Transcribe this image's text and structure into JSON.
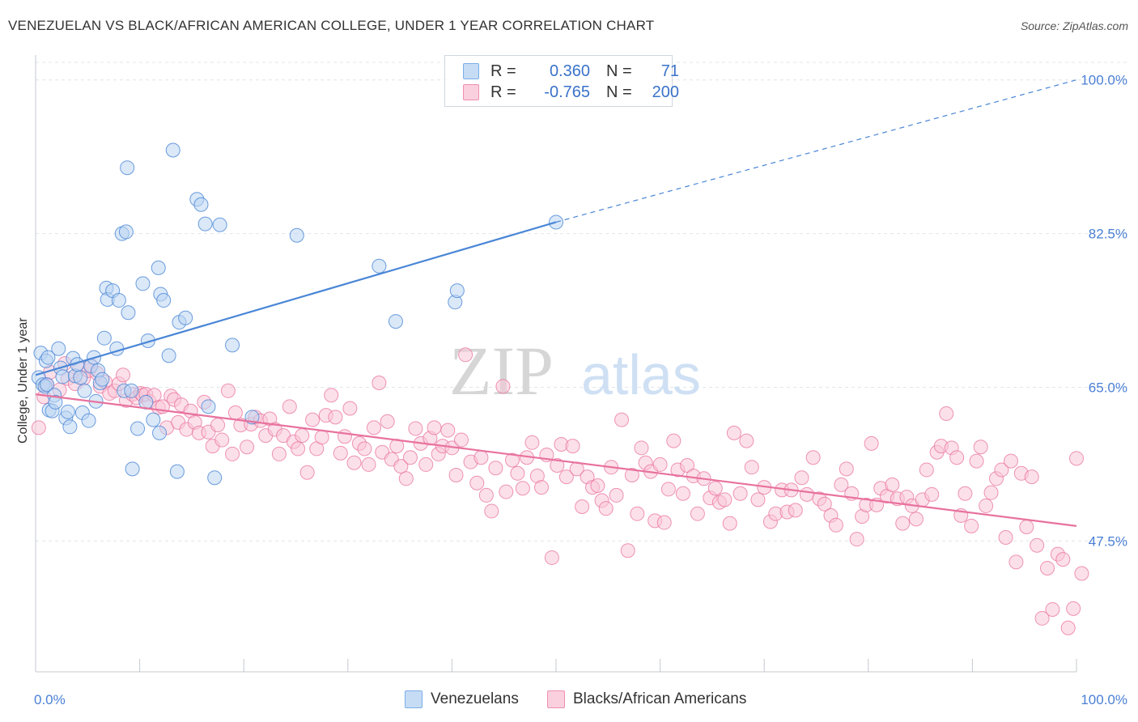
{
  "title": "VENEZUELAN VS BLACK/AFRICAN AMERICAN COLLEGE, UNDER 1 YEAR CORRELATION CHART",
  "source": "Source: ZipAtlas.com",
  "watermark": {
    "zip": "ZIP",
    "atlas": "atlas"
  },
  "stats": [
    {
      "r_label": "R =",
      "r_value": "0.360",
      "n_label": "N =",
      "n_value": "71",
      "color": "#7aaee8",
      "fill": "#c6dcf5"
    },
    {
      "r_label": "R =",
      "r_value": "-0.765",
      "n_label": "N =",
      "n_value": "200",
      "color": "#ef8fb1",
      "fill": "#fbd0de"
    }
  ],
  "legend": {
    "series1": "Venezuelans",
    "series2": "Blacks/African Americans"
  },
  "chart_data": {
    "type": "scatter",
    "title": "VENEZUELAN VS BLACK/AFRICAN AMERICAN COLLEGE, UNDER 1 YEAR CORRELATION CHART",
    "xlabel": "",
    "ylabel": "College, Under 1 year",
    "xlim": [
      0,
      100
    ],
    "ylim": [
      32.6,
      102
    ],
    "x_tick_labels": [
      "0.0%",
      "100.0%"
    ],
    "y_ticks": [
      47.5,
      65.0,
      82.5,
      100.0
    ],
    "y_tick_labels": [
      "47.5%",
      "65.0%",
      "82.5%",
      "100.0%"
    ],
    "grid": true,
    "legend_position": "bottom",
    "series": [
      {
        "name": "Venezuelans",
        "color": "#4a86d6",
        "fill": "#bcd5f3",
        "trend": {
          "x": [
            0,
            50
          ],
          "y": [
            66.4,
            83.8
          ],
          "extended_to": [
            100,
            100.0
          ]
        },
        "points": [
          [
            0.3,
            66.1
          ],
          [
            0.5,
            68.9
          ],
          [
            0.7,
            65.3
          ],
          [
            0.9,
            65.1
          ],
          [
            1.0,
            68.0
          ],
          [
            1.1,
            65.3
          ],
          [
            1.2,
            68.4
          ],
          [
            1.3,
            62.4
          ],
          [
            1.6,
            62.3
          ],
          [
            1.8,
            64.1
          ],
          [
            1.9,
            63.3
          ],
          [
            2.2,
            69.4
          ],
          [
            2.4,
            67.2
          ],
          [
            2.6,
            66.2
          ],
          [
            2.9,
            61.5
          ],
          [
            3.1,
            62.2
          ],
          [
            3.3,
            60.5
          ],
          [
            3.6,
            68.3
          ],
          [
            3.8,
            66.3
          ],
          [
            4.0,
            67.6
          ],
          [
            4.3,
            66.1
          ],
          [
            4.5,
            62.1
          ],
          [
            4.7,
            64.6
          ],
          [
            5.1,
            61.2
          ],
          [
            5.3,
            67.4
          ],
          [
            5.6,
            68.4
          ],
          [
            5.8,
            63.4
          ],
          [
            6.0,
            66.9
          ],
          [
            6.2,
            65.5
          ],
          [
            6.4,
            65.9
          ],
          [
            6.6,
            70.6
          ],
          [
            6.8,
            76.3
          ],
          [
            6.9,
            75.0
          ],
          [
            7.4,
            76.0
          ],
          [
            7.8,
            69.4
          ],
          [
            8.0,
            74.9
          ],
          [
            8.3,
            82.5
          ],
          [
            8.5,
            64.6
          ],
          [
            8.7,
            82.7
          ],
          [
            8.8,
            90.0
          ],
          [
            8.9,
            73.5
          ],
          [
            9.2,
            64.6
          ],
          [
            9.3,
            55.7
          ],
          [
            9.8,
            60.3
          ],
          [
            10.3,
            76.8
          ],
          [
            10.6,
            63.3
          ],
          [
            10.8,
            70.3
          ],
          [
            11.3,
            61.3
          ],
          [
            11.8,
            78.6
          ],
          [
            11.9,
            59.8
          ],
          [
            12.0,
            75.6
          ],
          [
            12.3,
            74.9
          ],
          [
            12.8,
            68.6
          ],
          [
            13.2,
            92.0
          ],
          [
            13.6,
            55.4
          ],
          [
            13.8,
            72.4
          ],
          [
            14.4,
            72.9
          ],
          [
            15.5,
            86.4
          ],
          [
            15.9,
            85.8
          ],
          [
            16.3,
            83.6
          ],
          [
            16.6,
            62.8
          ],
          [
            17.2,
            54.7
          ],
          [
            17.7,
            83.5
          ],
          [
            18.9,
            69.8
          ],
          [
            20.8,
            61.6
          ],
          [
            25.1,
            82.3
          ],
          [
            33.0,
            78.8
          ],
          [
            34.6,
            72.5
          ],
          [
            40.3,
            74.7
          ],
          [
            40.5,
            76.0
          ],
          [
            50.0,
            83.8
          ]
        ]
      },
      {
        "name": "Blacks/African Americans",
        "color": "#e8729d",
        "fill": "#f9c6d7",
        "trend": {
          "x": [
            0,
            100
          ],
          "y": [
            64.2,
            49.2
          ]
        },
        "points": [
          [
            0.3,
            60.4
          ],
          [
            0.8,
            63.9
          ],
          [
            1.0,
            65.3
          ],
          [
            1.4,
            66.7
          ],
          [
            2.3,
            64.7
          ],
          [
            2.8,
            67.7
          ],
          [
            3.1,
            66.0
          ],
          [
            3.8,
            65.4
          ],
          [
            4.2,
            67.1
          ],
          [
            4.6,
            66.0
          ],
          [
            5.1,
            66.9
          ],
          [
            5.3,
            67.5
          ],
          [
            5.9,
            66.6
          ],
          [
            6.2,
            65.1
          ],
          [
            6.7,
            65.6
          ],
          [
            7.1,
            64.3
          ],
          [
            7.6,
            64.6
          ],
          [
            8.0,
            65.4
          ],
          [
            8.4,
            66.4
          ],
          [
            8.7,
            63.5
          ],
          [
            9.3,
            64.2
          ],
          [
            9.7,
            63.8
          ],
          [
            10.1,
            64.3
          ],
          [
            10.3,
            64.1
          ],
          [
            10.6,
            64.2
          ],
          [
            10.9,
            63.4
          ],
          [
            11.4,
            64.1
          ],
          [
            11.8,
            62.7
          ],
          [
            12.2,
            62.8
          ],
          [
            12.6,
            60.4
          ],
          [
            13.0,
            64.0
          ],
          [
            13.3,
            63.6
          ],
          [
            13.7,
            61.0
          ],
          [
            14.0,
            63.0
          ],
          [
            14.5,
            60.2
          ],
          [
            14.9,
            62.3
          ],
          [
            15.3,
            61.0
          ],
          [
            15.7,
            59.8
          ],
          [
            16.2,
            63.3
          ],
          [
            16.6,
            59.9
          ],
          [
            17.0,
            58.3
          ],
          [
            17.5,
            60.7
          ],
          [
            17.9,
            59.0
          ],
          [
            18.5,
            64.6
          ],
          [
            18.9,
            57.4
          ],
          [
            19.2,
            62.1
          ],
          [
            19.7,
            60.7
          ],
          [
            20.3,
            58.2
          ],
          [
            20.7,
            60.8
          ],
          [
            21.1,
            61.6
          ],
          [
            21.6,
            61.2
          ],
          [
            22.1,
            59.5
          ],
          [
            22.5,
            61.4
          ],
          [
            23.0,
            60.2
          ],
          [
            23.4,
            57.4
          ],
          [
            23.8,
            59.5
          ],
          [
            24.4,
            62.8
          ],
          [
            24.8,
            58.8
          ],
          [
            25.2,
            58.0
          ],
          [
            25.6,
            59.5
          ],
          [
            26.1,
            55.3
          ],
          [
            26.6,
            61.3
          ],
          [
            27.0,
            58.0
          ],
          [
            27.5,
            59.3
          ],
          [
            27.9,
            61.8
          ],
          [
            28.4,
            64.1
          ],
          [
            28.8,
            61.6
          ],
          [
            29.3,
            57.5
          ],
          [
            29.7,
            59.4
          ],
          [
            30.2,
            62.6
          ],
          [
            30.6,
            56.4
          ],
          [
            31.1,
            58.6
          ],
          [
            31.6,
            58.0
          ],
          [
            32.0,
            56.2
          ],
          [
            32.5,
            60.4
          ],
          [
            33.0,
            65.5
          ],
          [
            33.3,
            57.6
          ],
          [
            33.8,
            61.1
          ],
          [
            34.2,
            56.8
          ],
          [
            34.7,
            58.3
          ],
          [
            35.1,
            56.0
          ],
          [
            35.6,
            54.6
          ],
          [
            36.0,
            57.0
          ],
          [
            36.5,
            60.3
          ],
          [
            37.0,
            58.6
          ],
          [
            37.5,
            56.2
          ],
          [
            37.9,
            59.2
          ],
          [
            38.3,
            60.4
          ],
          [
            38.7,
            57.4
          ],
          [
            39.1,
            58.3
          ],
          [
            39.6,
            60.1
          ],
          [
            40.0,
            58.1
          ],
          [
            40.4,
            55.0
          ],
          [
            40.9,
            59.0
          ],
          [
            41.3,
            68.7
          ],
          [
            41.8,
            56.5
          ],
          [
            42.4,
            54.1
          ],
          [
            42.8,
            57.0
          ],
          [
            43.3,
            52.7
          ],
          [
            43.8,
            50.9
          ],
          [
            44.2,
            55.8
          ],
          [
            44.9,
            65.1
          ],
          [
            45.2,
            53.1
          ],
          [
            45.8,
            56.7
          ],
          [
            46.3,
            55.2
          ],
          [
            46.8,
            53.5
          ],
          [
            47.2,
            57.0
          ],
          [
            47.7,
            58.7
          ],
          [
            48.2,
            54.9
          ],
          [
            48.6,
            53.6
          ],
          [
            49.1,
            57.3
          ],
          [
            49.6,
            45.6
          ],
          [
            50.1,
            56.1
          ],
          [
            50.5,
            58.5
          ],
          [
            51.0,
            54.8
          ],
          [
            51.6,
            58.3
          ],
          [
            52.0,
            55.7
          ],
          [
            52.5,
            51.4
          ],
          [
            53.0,
            54.8
          ],
          [
            53.5,
            53.6
          ],
          [
            54.0,
            53.8
          ],
          [
            54.4,
            52.1
          ],
          [
            54.8,
            51.2
          ],
          [
            55.3,
            55.9
          ],
          [
            55.8,
            52.7
          ],
          [
            56.3,
            61.3
          ],
          [
            56.9,
            46.4
          ],
          [
            57.3,
            55.0
          ],
          [
            57.8,
            50.6
          ],
          [
            58.2,
            58.1
          ],
          [
            58.6,
            56.4
          ],
          [
            59.1,
            55.4
          ],
          [
            59.5,
            49.8
          ],
          [
            60.0,
            56.2
          ],
          [
            60.4,
            49.6
          ],
          [
            60.8,
            53.4
          ],
          [
            61.3,
            58.9
          ],
          [
            61.7,
            55.6
          ],
          [
            62.2,
            52.9
          ],
          [
            62.6,
            56.1
          ],
          [
            63.2,
            54.9
          ],
          [
            63.6,
            50.6
          ],
          [
            64.2,
            54.6
          ],
          [
            64.8,
            52.4
          ],
          [
            65.3,
            53.5
          ],
          [
            65.7,
            51.9
          ],
          [
            66.2,
            52.2
          ],
          [
            66.7,
            49.5
          ],
          [
            67.1,
            59.8
          ],
          [
            67.7,
            52.9
          ],
          [
            68.3,
            58.9
          ],
          [
            68.8,
            55.9
          ],
          [
            69.4,
            52.2
          ],
          [
            70.0,
            53.6
          ],
          [
            70.6,
            49.7
          ],
          [
            71.1,
            50.6
          ],
          [
            71.7,
            53.3
          ],
          [
            72.2,
            50.8
          ],
          [
            72.6,
            53.3
          ],
          [
            73.0,
            51.0
          ],
          [
            73.6,
            54.7
          ],
          [
            74.1,
            52.8
          ],
          [
            74.7,
            57.0
          ],
          [
            75.3,
            52.3
          ],
          [
            75.8,
            51.7
          ],
          [
            76.4,
            50.4
          ],
          [
            76.9,
            49.3
          ],
          [
            77.4,
            53.9
          ],
          [
            77.9,
            55.7
          ],
          [
            78.4,
            52.9
          ],
          [
            78.9,
            47.7
          ],
          [
            79.4,
            50.3
          ],
          [
            79.8,
            51.6
          ],
          [
            80.3,
            58.6
          ],
          [
            80.8,
            51.6
          ],
          [
            81.2,
            53.5
          ],
          [
            81.8,
            52.6
          ],
          [
            82.3,
            53.9
          ],
          [
            82.8,
            52.3
          ],
          [
            83.3,
            49.5
          ],
          [
            83.7,
            52.5
          ],
          [
            84.2,
            51.5
          ],
          [
            84.6,
            50.0
          ],
          [
            85.2,
            52.2
          ],
          [
            85.6,
            55.6
          ],
          [
            86.1,
            52.8
          ],
          [
            86.6,
            57.6
          ],
          [
            87.0,
            58.3
          ],
          [
            87.5,
            62.0
          ],
          [
            88.0,
            58.1
          ],
          [
            88.5,
            57.0
          ],
          [
            88.9,
            50.4
          ],
          [
            89.3,
            52.9
          ],
          [
            89.9,
            49.2
          ],
          [
            90.4,
            56.6
          ],
          [
            90.8,
            58.2
          ],
          [
            91.3,
            51.5
          ],
          [
            91.8,
            53.0
          ],
          [
            92.3,
            54.6
          ],
          [
            92.8,
            55.6
          ],
          [
            93.2,
            47.9
          ],
          [
            93.7,
            56.6
          ],
          [
            94.2,
            45.1
          ],
          [
            94.7,
            55.2
          ],
          [
            95.2,
            49.1
          ],
          [
            95.7,
            54.8
          ],
          [
            96.2,
            47.0
          ],
          [
            96.7,
            38.7
          ],
          [
            97.2,
            44.4
          ],
          [
            97.7,
            39.7
          ],
          [
            98.2,
            46.0
          ],
          [
            98.7,
            45.4
          ],
          [
            99.2,
            37.6
          ],
          [
            99.7,
            39.8
          ],
          [
            100.0,
            56.9
          ],
          [
            100.5,
            43.8
          ]
        ]
      }
    ]
  }
}
